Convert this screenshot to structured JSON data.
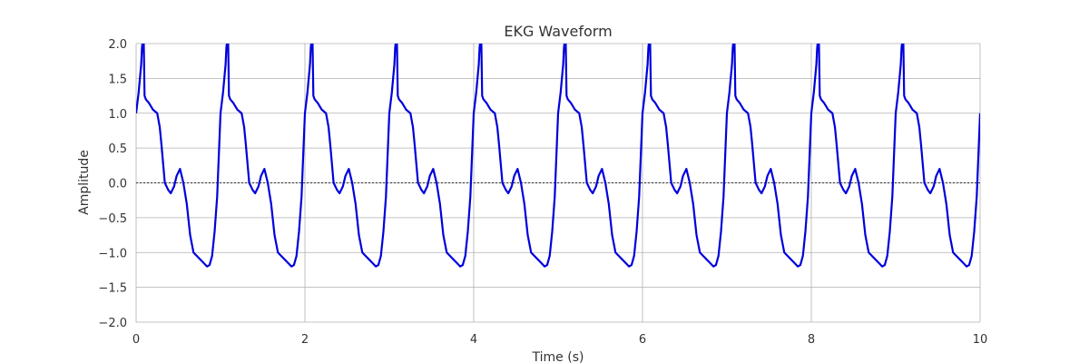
{
  "chart_data": {
    "type": "line",
    "title": "EKG Waveform",
    "xlabel": "Time (s)",
    "ylabel": "Amplitude",
    "xlim": [
      0,
      10
    ],
    "ylim": [
      -2.0,
      2.0
    ],
    "x_ticks": [
      0,
      2,
      4,
      6,
      8,
      10
    ],
    "x_tick_labels": [
      "0",
      "2",
      "4",
      "6",
      "8",
      "10"
    ],
    "y_ticks": [
      -2.0,
      -1.5,
      -1.0,
      -0.5,
      0.0,
      0.5,
      1.0,
      1.5,
      2.0
    ],
    "y_tick_labels": [
      "−2.0",
      "−1.5",
      "−1.0",
      "−0.5",
      "0.0",
      "0.5",
      "1.0",
      "1.5",
      "2.0"
    ],
    "grid": true,
    "baseline": 0.0,
    "period": 1.0,
    "cycle_template": {
      "x": [
        0.0,
        0.03,
        0.06,
        0.07,
        0.08,
        0.09,
        0.1,
        0.115,
        0.15,
        0.2,
        0.25,
        0.28,
        0.3,
        0.34,
        0.38,
        0.41,
        0.45,
        0.48,
        0.52,
        0.56,
        0.6,
        0.64,
        0.68,
        0.72,
        0.76,
        0.8,
        0.84,
        0.87,
        0.9,
        0.93,
        0.96,
        1.0
      ],
      "y": [
        1.0,
        1.3,
        1.7,
        1.95,
        2.05,
        2.05,
        1.25,
        1.2,
        1.15,
        1.05,
        1.0,
        0.8,
        0.55,
        0.0,
        -0.1,
        -0.15,
        -0.05,
        0.1,
        0.2,
        0.0,
        -0.3,
        -0.75,
        -1.0,
        -1.05,
        -1.1,
        -1.15,
        -1.2,
        -1.18,
        -1.05,
        -0.7,
        -0.2,
        1.0
      ]
    },
    "series": [
      {
        "color": "#0000dd"
      }
    ]
  }
}
